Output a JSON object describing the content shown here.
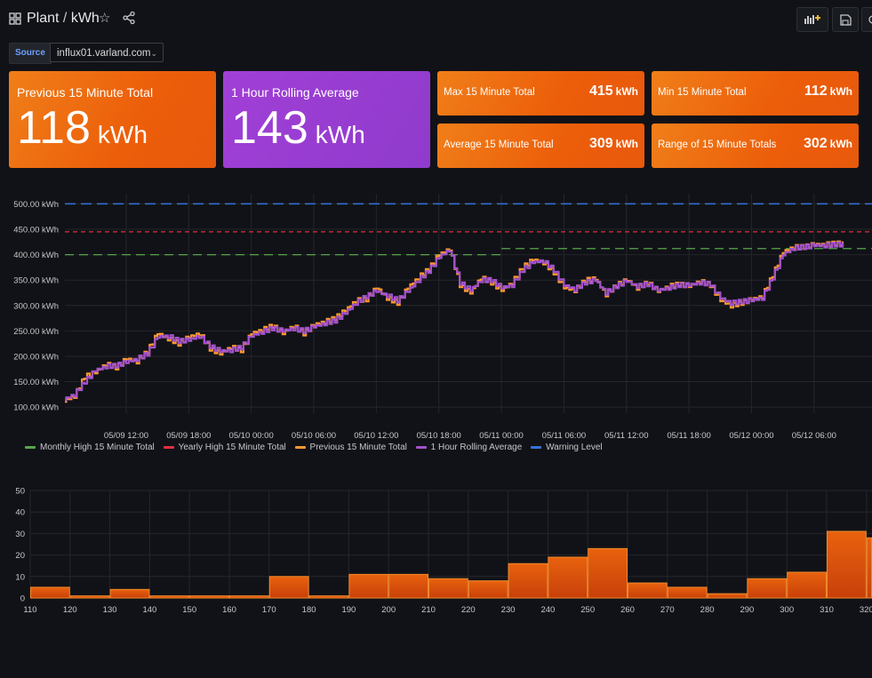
{
  "header": {
    "folder": "Plant",
    "separator": "/",
    "dashboard": "kWh"
  },
  "variables": {
    "label": "Source",
    "value": "influx01.varland.com"
  },
  "stats": {
    "prev15": {
      "label": "Previous 15 Minute Total",
      "value": "118",
      "unit": "kWh"
    },
    "rolling": {
      "label": "1 Hour Rolling Average",
      "value": "143",
      "unit": "kWh"
    },
    "max": {
      "label": "Max 15 Minute Total",
      "value": "415",
      "unit": "kWh"
    },
    "min": {
      "label": "Min 15 Minute Total",
      "value": "112",
      "unit": "kWh"
    },
    "avg": {
      "label": "Average 15 Minute Total",
      "value": "309",
      "unit": "kWh"
    },
    "range": {
      "label": "Range of 15 Minute Totals",
      "value": "302",
      "unit": "kWh"
    }
  },
  "colors": {
    "stat_orange": "#ec5e0a",
    "stat_purple": "#8f3bcc",
    "monthly_high": "#56a64b",
    "yearly_high": "#e02f44",
    "prev15": "#ff9830",
    "rolling": "#a352cc",
    "warning": "#3274d9",
    "histogram": "#e05a0c"
  },
  "icons": [
    "grid-icon",
    "star-icon",
    "share-icon",
    "add-panel-icon",
    "save-icon",
    "settings-icon"
  ],
  "chart_data": [
    {
      "type": "line",
      "y_tick_labels": [
        "100.00 kWh",
        "150.00 kWh",
        "200.00 kWh",
        "250.00 kWh",
        "300.00 kWh",
        "350.00 kWh",
        "400.00 kWh",
        "450.00 kWh",
        "500.00 kWh"
      ],
      "y_ticks": [
        100,
        150,
        200,
        250,
        300,
        350,
        400,
        450,
        500
      ],
      "ylim": [
        88,
        520
      ],
      "x_range_hours": [
        0,
        80
      ],
      "x_tick_labels": [
        "05/09 12:00",
        "05/09 18:00",
        "05/10 00:00",
        "05/10 06:00",
        "05/10 12:00",
        "05/10 18:00",
        "05/11 00:00",
        "05/11 06:00",
        "05/11 12:00",
        "05/11 18:00",
        "05/12 00:00",
        "05/12 06:00"
      ],
      "x_ticks_hours": [
        6,
        12,
        18,
        24,
        30,
        36,
        42,
        48,
        54,
        60,
        66,
        72
      ],
      "grid": true,
      "legend_position": "bottom",
      "thresholds": [
        {
          "name": "Monthly High 15 Minute Total",
          "value": 400,
          "value_after_hour": 42,
          "value_after": 412
        },
        {
          "name": "Yearly High 15 Minute Total",
          "value": 445
        },
        {
          "name": "Warning Level",
          "value": 500
        }
      ],
      "series": [
        {
          "name": "1 Hour Rolling Average",
          "x_hours": [
            0,
            1,
            2,
            3,
            4,
            5,
            6,
            7,
            8,
            9,
            10,
            11,
            12,
            13,
            14,
            15,
            16,
            17,
            18,
            19,
            20,
            21,
            22,
            23,
            24,
            25,
            26,
            27,
            28,
            29,
            30,
            31,
            32,
            33,
            34,
            35,
            36,
            37,
            38,
            39,
            40,
            41,
            42,
            43,
            44,
            45,
            46,
            47,
            48,
            49,
            50,
            51,
            52,
            53,
            54,
            55,
            56,
            57,
            58,
            59,
            60,
            61,
            62,
            63,
            64,
            65,
            66,
            67,
            68,
            69,
            70,
            71,
            72,
            73,
            74
          ],
          "values": [
            115,
            125,
            150,
            172,
            180,
            182,
            188,
            195,
            205,
            238,
            240,
            230,
            232,
            240,
            220,
            210,
            212,
            218,
            240,
            248,
            255,
            250,
            255,
            250,
            258,
            265,
            270,
            285,
            305,
            318,
            328,
            320,
            310,
            328,
            350,
            368,
            395,
            410,
            345,
            330,
            350,
            350,
            335,
            340,
            370,
            385,
            388,
            370,
            340,
            332,
            345,
            350,
            325,
            338,
            348,
            338,
            342,
            330,
            335,
            340,
            340,
            345,
            342,
            315,
            305,
            308,
            310,
            315,
            355,
            400,
            413,
            415,
            418,
            418,
            420
          ]
        },
        {
          "name": "Previous 15 Minute Total",
          "x_hours": [
            0,
            1,
            2,
            3,
            4,
            5,
            6,
            7,
            8,
            9,
            10,
            11,
            12,
            13,
            14,
            15,
            16,
            17,
            18,
            19,
            20,
            21,
            22,
            23,
            24,
            25,
            26,
            27,
            28,
            29,
            30,
            31,
            32,
            33,
            34,
            35,
            36,
            37,
            38,
            39,
            40,
            41,
            42,
            43,
            44,
            45,
            46,
            47,
            48,
            49,
            50,
            51,
            52,
            53,
            54,
            55,
            56,
            57,
            58,
            59,
            60,
            61,
            62,
            63,
            64,
            65,
            66,
            67,
            68,
            69,
            70,
            71,
            72,
            73,
            74
          ],
          "values": [
            112,
            122,
            160,
            168,
            185,
            178,
            195,
            190,
            210,
            245,
            235,
            225,
            238,
            245,
            215,
            205,
            218,
            212,
            245,
            252,
            260,
            245,
            260,
            245,
            262,
            268,
            275,
            290,
            310,
            312,
            335,
            315,
            305,
            335,
            355,
            372,
            400,
            412,
            340,
            325,
            355,
            345,
            330,
            345,
            375,
            390,
            385,
            365,
            335,
            330,
            350,
            352,
            322,
            340,
            350,
            335,
            345,
            328,
            338,
            342,
            338,
            348,
            340,
            310,
            300,
            305,
            312,
            318,
            360,
            405,
            415,
            415,
            420,
            420,
            422
          ]
        }
      ]
    },
    {
      "type": "bar",
      "x_tick_labels": [
        "110",
        "120",
        "130",
        "140",
        "150",
        "160",
        "170",
        "180",
        "190",
        "200",
        "210",
        "220",
        "230",
        "240",
        "250",
        "260",
        "270",
        "280",
        "290",
        "300",
        "310",
        "320"
      ],
      "bins_start": [
        110,
        120,
        130,
        140,
        150,
        160,
        170,
        180,
        190,
        200,
        210,
        220,
        230,
        240,
        250,
        260,
        270,
        280,
        290,
        300,
        310,
        320
      ],
      "bin_width": 10,
      "values": [
        5,
        1,
        4,
        1,
        1,
        1,
        10,
        1,
        11,
        11,
        9,
        8,
        16,
        19,
        23,
        7,
        5,
        2,
        9,
        12,
        31,
        28
      ],
      "y_ticks": [
        0,
        10,
        20,
        30,
        40,
        50
      ],
      "ylim": [
        0,
        50
      ],
      "grid": true
    }
  ]
}
